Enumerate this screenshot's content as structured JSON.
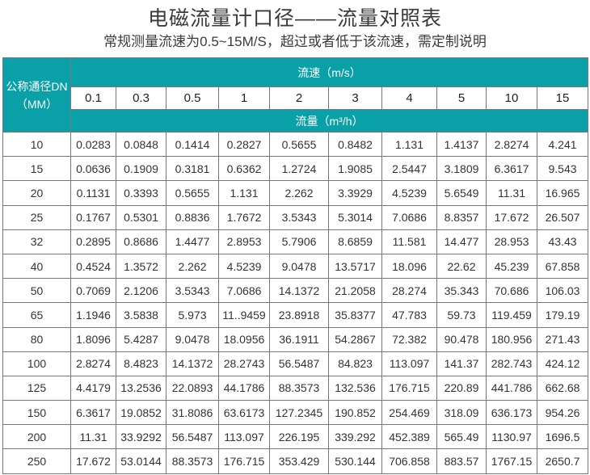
{
  "title": "电磁流量计口径——流量对照表",
  "subtitle": "常规测量流速为0.5~15M/S，超过或者低于该流速，需定制说明",
  "table": {
    "dn_header_line1": "公称通径DN",
    "dn_header_line2": "（MM）",
    "velocity_header": "流速（m/s）",
    "flow_header": "流量（m³/h）",
    "velocities": [
      "0.1",
      "0.3",
      "0.5",
      "1",
      "2",
      "3",
      "4",
      "5",
      "10",
      "15"
    ],
    "rows": [
      {
        "dn": "10",
        "values": [
          "0.0283",
          "0.0848",
          "0.1414",
          "0.2827",
          "0.5655",
          "0.8482",
          "1.131",
          "1.4137",
          "2.8274",
          "4.241"
        ]
      },
      {
        "dn": "15",
        "values": [
          "0.0636",
          "0.1909",
          "0.3181",
          "0.6362",
          "1.2724",
          "1.9085",
          "2.5447",
          "3.1809",
          "6.3617",
          "9.543"
        ]
      },
      {
        "dn": "20",
        "values": [
          "0.1131",
          "0.3393",
          "0.5655",
          "1.131",
          "2.262",
          "3.3929",
          "4.5239",
          "5.6549",
          "11.31",
          "16.965"
        ]
      },
      {
        "dn": "25",
        "values": [
          "0.1767",
          "0.5301",
          "0.8836",
          "1.7672",
          "3.5343",
          "5.3014",
          "7.0686",
          "8.8357",
          "17.672",
          "26.507"
        ]
      },
      {
        "dn": "32",
        "values": [
          "0.2895",
          "0.8686",
          "1.4477",
          "2.8953",
          "5.7906",
          "8.6859",
          "11.581",
          "14.477",
          "28.953",
          "43.43"
        ]
      },
      {
        "dn": "40",
        "values": [
          "0.4524",
          "1.3572",
          "2.262",
          "4.5239",
          "9.0478",
          "13.5717",
          "18.096",
          "22.62",
          "45.239",
          "67.858"
        ]
      },
      {
        "dn": "50",
        "values": [
          "0.7069",
          "2.1206",
          "3.5343",
          "7.0686",
          "14.1372",
          "21.2058",
          "28.274",
          "35.343",
          "70.686",
          "106.03"
        ]
      },
      {
        "dn": "65",
        "values": [
          "1.1946",
          "3.5838",
          "5.973",
          "11..9459",
          "23.8918",
          "35.8377",
          "47.783",
          "59.73",
          "119.459",
          "179.19"
        ]
      },
      {
        "dn": "80",
        "values": [
          "1.8096",
          "5.4287",
          "9.0478",
          "18.0956",
          "36.1911",
          "54.2867",
          "72.382",
          "90.478",
          "180.956",
          "271.43"
        ]
      },
      {
        "dn": "100",
        "values": [
          "2.8274",
          "8.4823",
          "14.1372",
          "28.2743",
          "56.5487",
          "84.823",
          "113.097",
          "141.37",
          "282.743",
          "424.12"
        ]
      },
      {
        "dn": "125",
        "values": [
          "4.4179",
          "13.2536",
          "22.0893",
          "44.1786",
          "88.3573",
          "132.536",
          "176.715",
          "220.89",
          "441.786",
          "662.68"
        ]
      },
      {
        "dn": "150",
        "values": [
          "6.3617",
          "19.0852",
          "31.8086",
          "63.6173",
          "127.2345",
          "190.852",
          "254.469",
          "318.09",
          "636.173",
          "954.26"
        ]
      },
      {
        "dn": "200",
        "values": [
          "11.31",
          "33.9292",
          "56.5487",
          "113.097",
          "226.195",
          "339.292",
          "452.389",
          "565.49",
          "1130.97",
          "1696.5"
        ]
      },
      {
        "dn": "250",
        "values": [
          "17.672",
          "53.0144",
          "88.3573",
          "176.715",
          "353.429",
          "530.144",
          "706.858",
          "883.57",
          "1767.15",
          "2650.7"
        ]
      }
    ]
  },
  "colors": {
    "header_bg": "#0aa0a8",
    "header_text": "#ffffff",
    "border": "#777777"
  }
}
